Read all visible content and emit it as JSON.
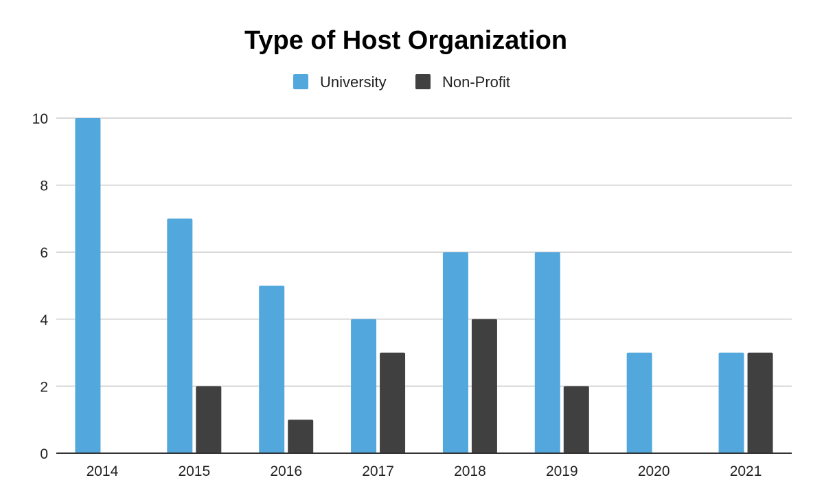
{
  "chart_data": {
    "type": "bar",
    "title": "Type of Host Organization",
    "xlabel": "",
    "ylabel": "",
    "categories": [
      "2014",
      "2015",
      "2016",
      "2017",
      "2018",
      "2019",
      "2020",
      "2021"
    ],
    "series": [
      {
        "name": "University",
        "color": "#52a8dc",
        "values": [
          10,
          7,
          5,
          4,
          6,
          6,
          3,
          3
        ]
      },
      {
        "name": "Non-Profit",
        "color": "#404040",
        "values": [
          0,
          2,
          1,
          3,
          4,
          2,
          0,
          3
        ]
      }
    ],
    "ylim": [
      0,
      10
    ],
    "yticks": [
      "0",
      "2",
      "4",
      "6",
      "8",
      "10"
    ],
    "grid": true,
    "legend_position": "top-center"
  }
}
